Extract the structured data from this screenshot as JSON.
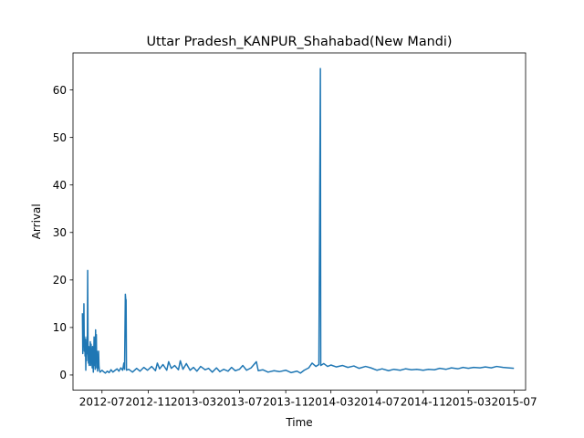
{
  "chart_data": {
    "type": "line",
    "title": "Uttar Pradesh_KANPUR_Shahabad(New Mandi)",
    "xlabel": "Time",
    "ylabel": "Arrival",
    "x_range": [
      "2012-04-15",
      "2015-07-31"
    ],
    "ylim": [
      -3.2,
      67.8
    ],
    "grid": false,
    "x_ticks": [
      "2012-07",
      "2012-11",
      "2013-03",
      "2013-07",
      "2013-11",
      "2014-03",
      "2014-07",
      "2014-11",
      "2015-03",
      "2015-07"
    ],
    "y_ticks": [
      0,
      10,
      20,
      30,
      40,
      50,
      60
    ],
    "series": [
      {
        "color": "#1f77b4",
        "points": [
          [
            "2012-05-10",
            13.0
          ],
          [
            "2012-05-11",
            4.5
          ],
          [
            "2012-05-12",
            12.8
          ],
          [
            "2012-05-13",
            6.0
          ],
          [
            "2012-05-14",
            15.0
          ],
          [
            "2012-05-15",
            5.0
          ],
          [
            "2012-05-16",
            8.0
          ],
          [
            "2012-05-17",
            4.0
          ],
          [
            "2012-05-18",
            7.5
          ],
          [
            "2012-05-19",
            1.0
          ],
          [
            "2012-05-20",
            6.5
          ],
          [
            "2012-05-21",
            3.0
          ],
          [
            "2012-05-22",
            8.0
          ],
          [
            "2012-05-23",
            4.5
          ],
          [
            "2012-05-24",
            22.0
          ],
          [
            "2012-05-25",
            5.0
          ],
          [
            "2012-05-26",
            2.5
          ],
          [
            "2012-05-27",
            6.0
          ],
          [
            "2012-05-28",
            2.0
          ],
          [
            "2012-05-29",
            5.5
          ],
          [
            "2012-05-30",
            3.0
          ],
          [
            "2012-05-31",
            7.0
          ],
          [
            "2012-06-01",
            2.0
          ],
          [
            "2012-06-02",
            6.5
          ],
          [
            "2012-06-03",
            2.5
          ],
          [
            "2012-06-04",
            5.0
          ],
          [
            "2012-06-05",
            1.5
          ],
          [
            "2012-06-06",
            6.0
          ],
          [
            "2012-06-07",
            3.0
          ],
          [
            "2012-06-08",
            0.6
          ],
          [
            "2012-06-09",
            4.0
          ],
          [
            "2012-06-10",
            8.0
          ],
          [
            "2012-06-11",
            2.0
          ],
          [
            "2012-06-12",
            6.0
          ],
          [
            "2012-06-13",
            1.2
          ],
          [
            "2012-06-14",
            9.5
          ],
          [
            "2012-06-15",
            3.0
          ],
          [
            "2012-06-16",
            8.5
          ],
          [
            "2012-06-17",
            1.5
          ],
          [
            "2012-06-18",
            5.0
          ],
          [
            "2012-06-19",
            0.8
          ],
          [
            "2012-06-20",
            4.0
          ],
          [
            "2012-06-21",
            1.5
          ],
          [
            "2012-06-22",
            5.0
          ],
          [
            "2012-06-23",
            2.0
          ],
          [
            "2012-06-24",
            1.0
          ],
          [
            "2012-06-26",
            0.6
          ],
          [
            "2012-07-01",
            1.0
          ],
          [
            "2012-07-05",
            0.7
          ],
          [
            "2012-07-10",
            0.4
          ],
          [
            "2012-07-15",
            0.8
          ],
          [
            "2012-07-20",
            0.5
          ],
          [
            "2012-07-25",
            1.1
          ],
          [
            "2012-07-30",
            0.6
          ],
          [
            "2012-08-05",
            1.0
          ],
          [
            "2012-08-10",
            1.3
          ],
          [
            "2012-08-15",
            0.8
          ],
          [
            "2012-08-20",
            1.5
          ],
          [
            "2012-08-25",
            1.0
          ],
          [
            "2012-08-28",
            2.5
          ],
          [
            "2012-08-30",
            1.2
          ],
          [
            "2012-09-01",
            17.0
          ],
          [
            "2012-09-02",
            16.0
          ],
          [
            "2012-09-03",
            15.8
          ],
          [
            "2012-09-04",
            1.0
          ],
          [
            "2012-09-10",
            1.2
          ],
          [
            "2012-09-20",
            0.6
          ],
          [
            "2012-10-01",
            1.4
          ],
          [
            "2012-10-10",
            0.8
          ],
          [
            "2012-10-20",
            1.6
          ],
          [
            "2012-10-30",
            1.0
          ],
          [
            "2012-11-10",
            1.8
          ],
          [
            "2012-11-20",
            0.9
          ],
          [
            "2012-11-25",
            2.5
          ],
          [
            "2012-12-01",
            1.3
          ],
          [
            "2012-12-10",
            2.2
          ],
          [
            "2012-12-20",
            1.0
          ],
          [
            "2012-12-25",
            2.8
          ],
          [
            "2013-01-01",
            1.4
          ],
          [
            "2013-01-10",
            2.0
          ],
          [
            "2013-01-20",
            1.1
          ],
          [
            "2013-01-25",
            3.0
          ],
          [
            "2013-02-01",
            1.2
          ],
          [
            "2013-02-10",
            2.4
          ],
          [
            "2013-02-20",
            1.0
          ],
          [
            "2013-03-01",
            1.6
          ],
          [
            "2013-03-10",
            0.8
          ],
          [
            "2013-03-20",
            1.8
          ],
          [
            "2013-04-01",
            1.1
          ],
          [
            "2013-04-10",
            1.4
          ],
          [
            "2013-04-20",
            0.6
          ],
          [
            "2013-05-01",
            1.5
          ],
          [
            "2013-05-10",
            0.7
          ],
          [
            "2013-05-20",
            1.2
          ],
          [
            "2013-06-01",
            0.8
          ],
          [
            "2013-06-10",
            1.6
          ],
          [
            "2013-06-20",
            0.9
          ],
          [
            "2013-07-01",
            1.2
          ],
          [
            "2013-07-10",
            2.0
          ],
          [
            "2013-07-20",
            1.0
          ],
          [
            "2013-08-01",
            1.5
          ],
          [
            "2013-08-15",
            2.8
          ],
          [
            "2013-08-20",
            0.9
          ],
          [
            "2013-09-01",
            1.1
          ],
          [
            "2013-09-15",
            0.6
          ],
          [
            "2013-10-01",
            0.9
          ],
          [
            "2013-10-15",
            0.7
          ],
          [
            "2013-11-01",
            1.0
          ],
          [
            "2013-11-15",
            0.5
          ],
          [
            "2013-12-01",
            0.8
          ],
          [
            "2013-12-10",
            0.4
          ],
          [
            "2013-12-20",
            1.0
          ],
          [
            "2014-01-01",
            1.5
          ],
          [
            "2014-01-10",
            2.5
          ],
          [
            "2014-01-20",
            1.8
          ],
          [
            "2014-01-28",
            2.2
          ],
          [
            "2014-02-01",
            64.5
          ],
          [
            "2014-02-02",
            2.0
          ],
          [
            "2014-02-10",
            2.4
          ],
          [
            "2014-02-20",
            1.8
          ],
          [
            "2014-03-01",
            2.1
          ],
          [
            "2014-03-15",
            1.7
          ],
          [
            "2014-04-01",
            2.0
          ],
          [
            "2014-04-15",
            1.6
          ],
          [
            "2014-05-01",
            1.9
          ],
          [
            "2014-05-15",
            1.4
          ],
          [
            "2014-06-01",
            1.8
          ],
          [
            "2014-06-15",
            1.5
          ],
          [
            "2014-07-01",
            1.0
          ],
          [
            "2014-07-15",
            1.3
          ],
          [
            "2014-08-01",
            0.9
          ],
          [
            "2014-08-15",
            1.2
          ],
          [
            "2014-09-01",
            1.0
          ],
          [
            "2014-09-15",
            1.3
          ],
          [
            "2014-10-01",
            1.1
          ],
          [
            "2014-10-15",
            1.2
          ],
          [
            "2014-11-01",
            1.0
          ],
          [
            "2014-11-15",
            1.2
          ],
          [
            "2014-12-01",
            1.1
          ],
          [
            "2014-12-15",
            1.4
          ],
          [
            "2015-01-01",
            1.2
          ],
          [
            "2015-01-15",
            1.5
          ],
          [
            "2015-02-01",
            1.3
          ],
          [
            "2015-02-15",
            1.6
          ],
          [
            "2015-03-01",
            1.4
          ],
          [
            "2015-03-15",
            1.6
          ],
          [
            "2015-04-01",
            1.5
          ],
          [
            "2015-04-15",
            1.7
          ],
          [
            "2015-05-01",
            1.5
          ],
          [
            "2015-05-15",
            1.8
          ],
          [
            "2015-06-01",
            1.6
          ],
          [
            "2015-06-15",
            1.5
          ],
          [
            "2015-06-30",
            1.4
          ]
        ]
      }
    ]
  }
}
